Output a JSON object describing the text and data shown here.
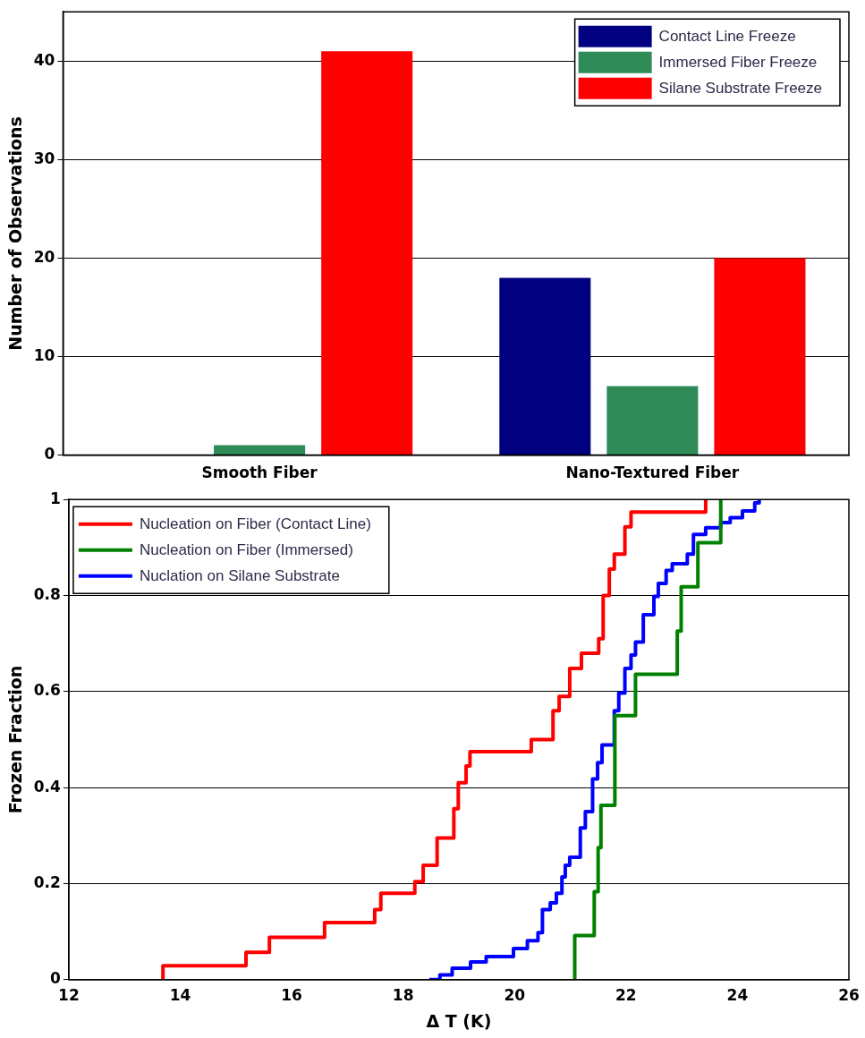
{
  "chart_data": [
    {
      "type": "bar",
      "ylabel": "Number of Observations",
      "categories": [
        "Smooth Fiber",
        "Nano-Textured Fiber"
      ],
      "series": [
        {
          "name": "Contact Line Freeze",
          "color": "#000080",
          "values": [
            0,
            18
          ]
        },
        {
          "name": "Immersed Fiber Freeze",
          "color": "#2e8b57",
          "values": [
            1,
            7
          ]
        },
        {
          "name": "Silane Substrate Freeze",
          "color": "#ff0000",
          "values": [
            41,
            20
          ]
        }
      ],
      "ylim": [
        0,
        45
      ],
      "yticks": [
        0,
        10,
        20,
        30,
        40
      ],
      "grid": "y",
      "legend": "top right"
    },
    {
      "type": "step",
      "xlabel": "Δ T (K)",
      "ylabel": "Frozen Fraction",
      "series": [
        {
          "name": "Nucleation on Fiber (Contact Line)",
          "color": "#ff0000",
          "x": [
            13.69,
            13.69,
            15.18,
            15.6,
            16.59,
            17.49,
            17.6,
            18.21,
            18.36,
            18.61,
            18.91,
            18.99,
            19.13,
            19.2,
            20.3,
            20.69,
            20.8,
            20.99,
            21.2,
            21.51,
            21.59,
            21.7,
            21.79,
            21.98,
            22.09,
            23.43
          ],
          "values": [
            0,
            0.029,
            0.057,
            0.088,
            0.119,
            0.146,
            0.18,
            0.204,
            0.238,
            0.295,
            0.356,
            0.41,
            0.445,
            0.475,
            0.5,
            0.56,
            0.59,
            0.648,
            0.68,
            0.71,
            0.8,
            0.855,
            0.886,
            0.943,
            0.974,
            1.0
          ]
        },
        {
          "name": "Nucleation on Fiber (Immersed)",
          "color": "#008000",
          "x": [
            21.08,
            21.08,
            21.43,
            21.5,
            21.55,
            21.8,
            21.8,
            22.17,
            22.92,
            22.99,
            23.29,
            23.7
          ],
          "values": [
            0,
            0.092,
            0.183,
            0.275,
            0.363,
            0.516,
            0.55,
            0.636,
            0.726,
            0.818,
            0.91,
            1.0
          ]
        },
        {
          "name": "Nuclation on Silane Substrate",
          "color": "#0000ff",
          "x": [
            18.47,
            18.66,
            18.88,
            19.21,
            19.49,
            19.98,
            20.23,
            20.42,
            20.5,
            20.64,
            20.75,
            20.85,
            20.91,
            20.99,
            21.18,
            21.27,
            21.4,
            21.49,
            21.57,
            21.79,
            21.87,
            21.98,
            22.09,
            22.17,
            22.31,
            22.5,
            22.58,
            22.72,
            22.83,
            23.1,
            23.21,
            23.43,
            23.7,
            23.87,
            24.09,
            24.31,
            24.39
          ],
          "values": [
            0,
            0.01,
            0.024,
            0.037,
            0.048,
            0.065,
            0.081,
            0.098,
            0.146,
            0.16,
            0.18,
            0.214,
            0.238,
            0.255,
            0.316,
            0.35,
            0.418,
            0.452,
            0.489,
            0.56,
            0.597,
            0.648,
            0.676,
            0.703,
            0.76,
            0.798,
            0.825,
            0.852,
            0.866,
            0.886,
            0.927,
            0.941,
            0.952,
            0.962,
            0.976,
            0.993,
            1.0
          ]
        }
      ],
      "xlim": [
        12,
        26
      ],
      "xticks": [
        12,
        14,
        16,
        18,
        20,
        22,
        24,
        26
      ],
      "ylim": [
        0,
        1
      ],
      "yticks": [
        0,
        0.2,
        0.4,
        0.6,
        0.8,
        1
      ],
      "grid": "y",
      "legend": "top left"
    }
  ]
}
